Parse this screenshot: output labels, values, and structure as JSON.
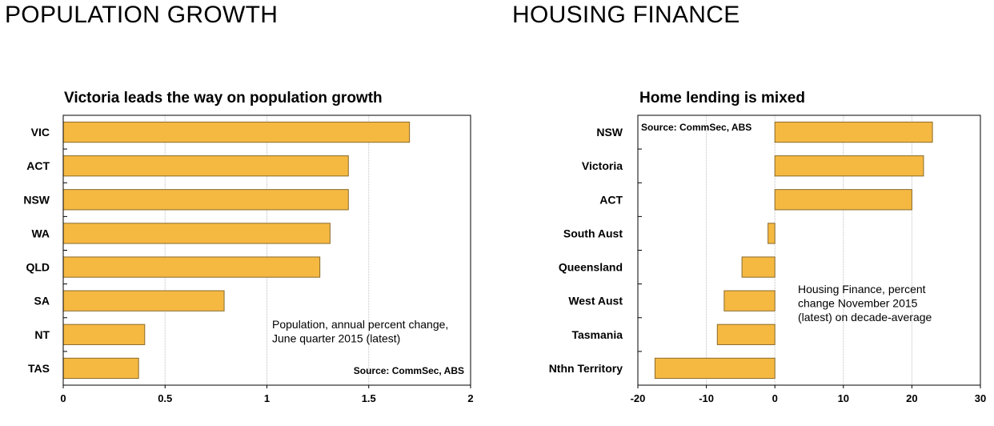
{
  "headings": {
    "left": "POPULATION GROWTH",
    "right": "HOUSING FINANCE"
  },
  "colors": {
    "bar": "#F5B942",
    "bar_edge": "#8a6a2a",
    "grid": "#bdbdbd"
  },
  "chart_data": [
    {
      "type": "bar",
      "orientation": "horizontal",
      "title": "Victoria leads the way on population growth",
      "categories": [
        "VIC",
        "ACT",
        "NSW",
        "WA",
        "QLD",
        "SA",
        "NT",
        "TAS"
      ],
      "values": [
        1.7,
        1.4,
        1.4,
        1.31,
        1.26,
        0.79,
        0.4,
        0.37
      ],
      "xlim": [
        0,
        2
      ],
      "xticks": [
        0,
        0.5,
        1,
        1.5,
        2
      ],
      "xtick_labels": [
        "0",
        "0.5",
        "1",
        "1.5",
        "2"
      ],
      "grid": true,
      "annotation": [
        "Population, annual percent change,",
        "June quarter 2015 (latest)"
      ],
      "source": "Source: CommSec, ABS"
    },
    {
      "type": "bar",
      "orientation": "horizontal",
      "title": "Home lending is mixed",
      "categories": [
        "NSW",
        "Victoria",
        "ACT",
        "South Aust",
        "Queensland",
        "West Aust",
        "Tasmania",
        "Nthn Territory"
      ],
      "values": [
        23,
        21.7,
        20,
        -1,
        -4.8,
        -7.4,
        -8.4,
        -17.5
      ],
      "xlim": [
        -20,
        30
      ],
      "xticks": [
        -20,
        -10,
        0,
        10,
        20,
        30
      ],
      "xtick_labels": [
        "-20",
        "-10",
        "0",
        "10",
        "20",
        "30"
      ],
      "grid": true,
      "annotation": [
        "Housing Finance, percent",
        "change November 2015",
        "(latest) on decade-average"
      ],
      "source": "Source: CommSec, ABS"
    }
  ]
}
